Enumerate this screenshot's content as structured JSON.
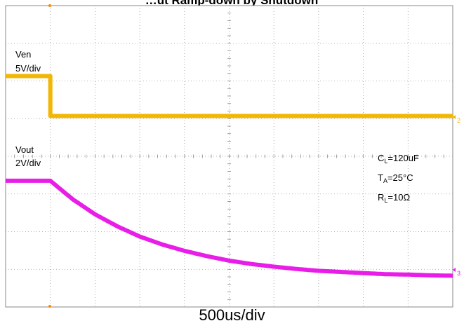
{
  "chart_data": {
    "type": "line",
    "title": "…ut Ramp-down by Shutdown",
    "xlabel": "500us/div",
    "x_divisions": 10,
    "y_divisions": 8,
    "grid": true,
    "x_unit": "div",
    "series": [
      {
        "name": "Ven",
        "color": "#F2B705",
        "scale_label": "5V/div",
        "marker": "2",
        "x": [
          0,
          1.0,
          1.0,
          10
        ],
        "y": [
          6.13,
          6.13,
          5.07,
          5.07
        ]
      },
      {
        "name": "Vout",
        "color": "#E81EE8",
        "scale_label": "2V/div",
        "marker": "3",
        "x": [
          0,
          1.0,
          1.5,
          2.0,
          2.5,
          3.0,
          3.5,
          4.0,
          4.5,
          5.0,
          5.5,
          6.0,
          6.5,
          7.0,
          7.5,
          8.0,
          8.5,
          9.0,
          9.5,
          10.0
        ],
        "y": [
          3.35,
          3.35,
          2.86,
          2.46,
          2.14,
          1.87,
          1.66,
          1.49,
          1.35,
          1.23,
          1.14,
          1.07,
          1.01,
          0.96,
          0.93,
          0.9,
          0.87,
          0.86,
          0.84,
          0.83
        ]
      }
    ],
    "annotations": {
      "ven_name": "Ven",
      "ven_scale": "5V/div",
      "vout_name": "Vout",
      "vout_scale": "2V/div",
      "cl_main": "C",
      "cl_sub": "L",
      "cl_value": "=120uF",
      "ta_main": "T",
      "ta_sub": "A",
      "ta_value": "=25°C",
      "rl_main": "R",
      "rl_sub": "L",
      "rl_value": "=10Ω"
    },
    "markers": {
      "m2": "2",
      "m3": "3"
    }
  }
}
